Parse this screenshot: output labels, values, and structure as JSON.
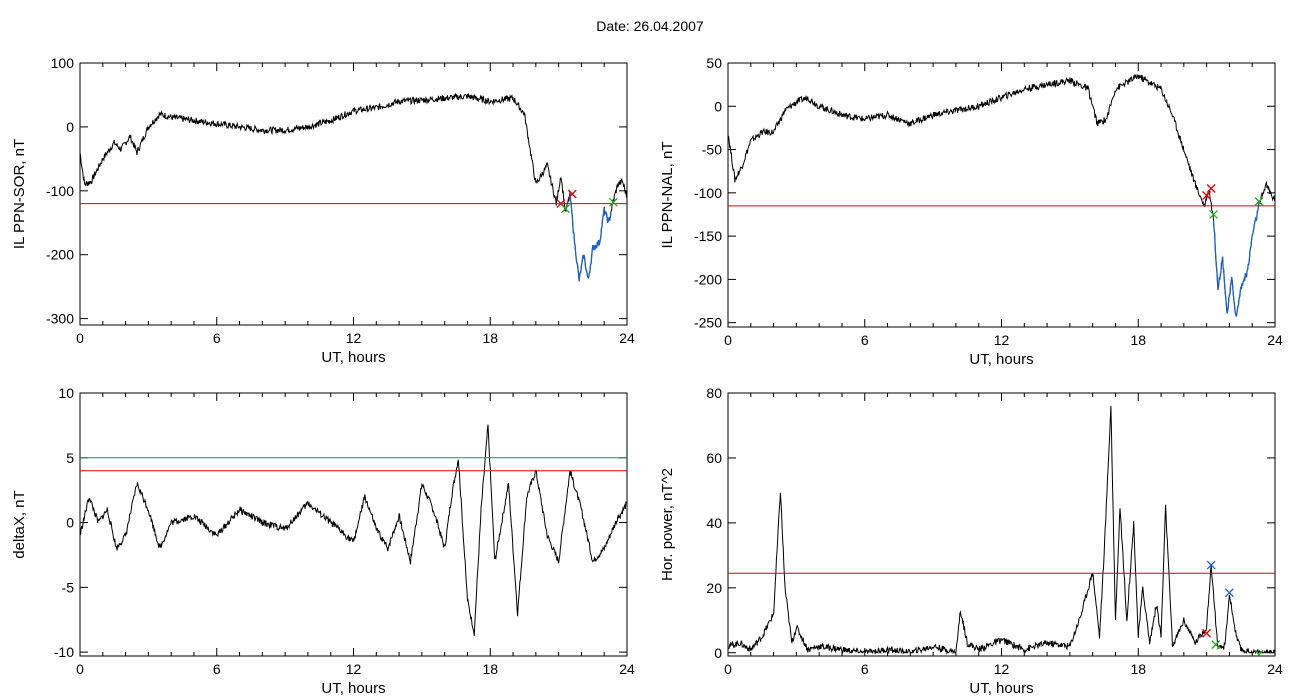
{
  "header": {
    "date_text": "Date:  26.04.2007"
  },
  "colors": {
    "trace": "#000000",
    "threshold": "#e00000",
    "threshold2": "#1a8a8a",
    "segment": "#1a5fd0",
    "marker_red": "#e00000",
    "marker_green": "#22aa22",
    "marker_blue": "#1a5fd0"
  },
  "chart_data": [
    {
      "id": "il-ppn-sor",
      "type": "line",
      "xlabel": "UT, hours",
      "ylabel": "IL PPN-SOR, nT",
      "xlim": [
        0,
        24
      ],
      "ylim": [
        -310,
        100
      ],
      "xticks": [
        0,
        6,
        12,
        18,
        24
      ],
      "yticks": [
        100,
        0,
        -100,
        -200,
        -300
      ],
      "x": [
        0,
        0.2,
        0.5,
        1,
        1.5,
        1.8,
        2.2,
        2.5,
        3,
        3.5,
        4,
        5,
        6,
        7,
        8,
        9,
        10,
        11,
        12,
        13,
        14,
        15,
        16,
        17,
        18,
        19,
        19.5,
        20,
        20.5,
        20.9,
        21.1,
        21.3,
        21.5,
        21.7,
        21.9,
        22.1,
        22.3,
        22.5,
        22.8,
        23,
        23.2,
        23.4,
        23.6,
        23.8,
        24
      ],
      "values": [
        -40,
        -90,
        -85,
        -50,
        -25,
        -35,
        -15,
        -40,
        0,
        20,
        15,
        10,
        5,
        0,
        -5,
        -5,
        0,
        10,
        25,
        30,
        40,
        42,
        45,
        48,
        40,
        45,
        20,
        -90,
        -60,
        -120,
        -75,
        -135,
        -105,
        -180,
        -240,
        -200,
        -240,
        -190,
        -180,
        -130,
        -150,
        -115,
        -90,
        -85,
        -110
      ],
      "thresholds": [
        {
          "y": -120,
          "color": "#e00000"
        }
      ],
      "segment": {
        "from": 21.5,
        "to": 23.3,
        "color": "#1a5fd0"
      },
      "markers": [
        {
          "x": 21.1,
          "y": -120,
          "color": "#e00000"
        },
        {
          "x": 21.6,
          "y": -105,
          "color": "#e00000"
        },
        {
          "x": 21.3,
          "y": -128,
          "color": "#22aa22"
        },
        {
          "x": 23.4,
          "y": -118,
          "color": "#22aa22"
        }
      ]
    },
    {
      "id": "il-ppn-nal",
      "type": "line",
      "xlabel": "UT, hours",
      "ylabel": "IL PPN-NAL, nT",
      "xlim": [
        0,
        24
      ],
      "ylim": [
        -255,
        50
      ],
      "xticks": [
        0,
        6,
        12,
        18,
        24
      ],
      "yticks": [
        50,
        0,
        -50,
        -100,
        -150,
        -200,
        -250
      ],
      "x": [
        0,
        0.3,
        0.6,
        1,
        1.5,
        2,
        2.5,
        3,
        3.5,
        4,
        5,
        6,
        7,
        8,
        9,
        10,
        11,
        12,
        13,
        14,
        15,
        15.8,
        16.2,
        16.6,
        17,
        18,
        19,
        19.5,
        20,
        20.5,
        20.9,
        21.1,
        21.3,
        21.5,
        21.7,
        21.9,
        22.1,
        22.3,
        22.5,
        22.8,
        23,
        23.3,
        23.6,
        24
      ],
      "values": [
        -30,
        -85,
        -70,
        -40,
        -30,
        -30,
        -5,
        5,
        10,
        0,
        -10,
        -15,
        -10,
        -20,
        -10,
        -5,
        0,
        10,
        20,
        25,
        30,
        20,
        -20,
        -15,
        20,
        35,
        20,
        -10,
        -50,
        -90,
        -115,
        -95,
        -130,
        -210,
        -175,
        -240,
        -200,
        -245,
        -210,
        -190,
        -150,
        -115,
        -90,
        -110
      ],
      "thresholds": [
        {
          "y": -115,
          "color": "#e00000"
        }
      ],
      "segment": {
        "from": 21.3,
        "to": 23.3,
        "color": "#1a5fd0"
      },
      "markers": [
        {
          "x": 21.0,
          "y": -103,
          "color": "#e00000"
        },
        {
          "x": 21.2,
          "y": -95,
          "color": "#e00000"
        },
        {
          "x": 21.3,
          "y": -125,
          "color": "#22aa22"
        },
        {
          "x": 23.3,
          "y": -110,
          "color": "#22aa22"
        }
      ]
    },
    {
      "id": "deltax",
      "type": "line",
      "xlabel": "UT, hours",
      "ylabel": "deltaX, nT",
      "xlim": [
        0,
        24
      ],
      "ylim": [
        -10.3,
        10
      ],
      "xticks": [
        0,
        6,
        12,
        18,
        24
      ],
      "yticks": [
        10,
        5,
        0,
        -5,
        -10
      ],
      "x": [
        0,
        0.4,
        0.8,
        1.2,
        1.6,
        2,
        2.5,
        3,
        3.5,
        4,
        5,
        6,
        7,
        8,
        9,
        10,
        11,
        12,
        12.5,
        13,
        13.5,
        14,
        14.5,
        15,
        15.5,
        16,
        16.3,
        16.6,
        17,
        17.3,
        17.6,
        17.9,
        18.2,
        18.5,
        18.8,
        19.2,
        19.6,
        20,
        20.5,
        21,
        21.5,
        22,
        22.5,
        23,
        23.5,
        24
      ],
      "values": [
        -1,
        2,
        0,
        1,
        -2,
        -1,
        3,
        1,
        -2,
        0,
        0.5,
        -1,
        1,
        0,
        -0.5,
        1.5,
        0,
        -1.5,
        2,
        -0.5,
        -2,
        0.5,
        -3,
        3,
        1,
        -2,
        2,
        5,
        -6,
        -8.5,
        1,
        7.5,
        -3,
        0,
        3,
        -7,
        2,
        4,
        -1,
        -3,
        4,
        1,
        -3,
        -2,
        0,
        1.5
      ],
      "thresholds": [
        {
          "y": 5,
          "color": "#1a8a8a"
        },
        {
          "y": 4,
          "color": "#e00000"
        }
      ],
      "markers": []
    },
    {
      "id": "hor-power",
      "type": "line",
      "xlabel": "UT, hours",
      "ylabel": "Hor. power, nT^2",
      "xlim": [
        0,
        24
      ],
      "ylim": [
        -1,
        80
      ],
      "xticks": [
        0,
        6,
        12,
        18,
        24
      ],
      "yticks": [
        80,
        60,
        40,
        20,
        0
      ],
      "x": [
        0,
        0.5,
        1,
        1.5,
        2,
        2.3,
        2.5,
        2.8,
        3,
        3.5,
        4,
        5,
        6,
        7,
        8,
        9,
        10,
        10.2,
        10.5,
        11,
        12,
        13,
        14,
        15,
        15.5,
        16,
        16.3,
        16.5,
        16.8,
        17,
        17.2,
        17.5,
        17.8,
        18,
        18.2,
        18.5,
        18.8,
        19,
        19.2,
        19.5,
        20,
        20.5,
        21,
        21.2,
        21.5,
        21.8,
        22,
        22.3,
        22.5,
        23,
        23.5,
        24
      ],
      "values": [
        2,
        3,
        1,
        5,
        12,
        50,
        20,
        3,
        8,
        1,
        2,
        1,
        0,
        1,
        0,
        2,
        0,
        13,
        3,
        1,
        4,
        1,
        3,
        2,
        12,
        25,
        5,
        30,
        76,
        10,
        45,
        10,
        40,
        5,
        20,
        3,
        15,
        5,
        45,
        2,
        10,
        3,
        8,
        27,
        1,
        2,
        18,
        5,
        1,
        0,
        0,
        0
      ],
      "thresholds": [
        {
          "y": 24.5,
          "color": "#e00000"
        }
      ],
      "markers": [
        {
          "x": 21.2,
          "y": 27,
          "color": "#1a5fd0"
        },
        {
          "x": 22.0,
          "y": 18.5,
          "color": "#1a5fd0"
        },
        {
          "x": 21.0,
          "y": 6,
          "color": "#e00000"
        },
        {
          "x": 21.4,
          "y": 2.5,
          "color": "#22aa22"
        },
        {
          "x": 23.3,
          "y": -0.5,
          "color": "#22aa22"
        }
      ]
    }
  ]
}
